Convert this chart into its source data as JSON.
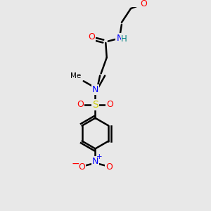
{
  "background_color": "#e8e8e8",
  "bond_color": "#000000",
  "colors": {
    "O": "#ff0000",
    "N": "#0000ff",
    "S": "#cccc00",
    "H": "#008080",
    "C": "#000000"
  },
  "figsize": [
    3.0,
    3.0
  ],
  "dpi": 100
}
